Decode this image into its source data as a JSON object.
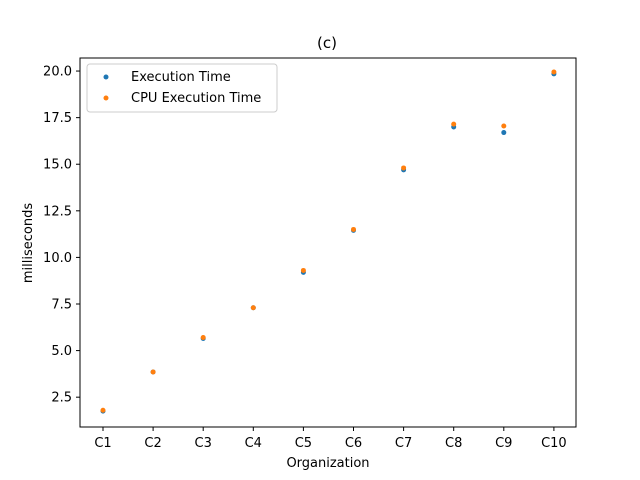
{
  "chart_data": {
    "type": "scatter",
    "title": "(c)",
    "xlabel": "Organization",
    "ylabel": "milliseconds",
    "categories": [
      "C1",
      "C2",
      "C3",
      "C4",
      "C5",
      "C6",
      "C7",
      "C8",
      "C9",
      "C10"
    ],
    "ylim": [
      0.9,
      20.7
    ],
    "yticks": [
      2.5,
      5.0,
      7.5,
      10.0,
      12.5,
      15.0,
      17.5,
      20.0
    ],
    "ytick_labels": [
      "2.5",
      "5.0",
      "7.5",
      "10.0",
      "12.5",
      "15.0",
      "17.5",
      "20.0"
    ],
    "grid": false,
    "legend_position": "upper-left",
    "series": [
      {
        "name": "Execution Time",
        "color": "#1f77b4",
        "values": [
          1.75,
          3.85,
          5.65,
          7.3,
          9.2,
          11.45,
          14.7,
          17.0,
          16.7,
          19.85
        ]
      },
      {
        "name": "CPU Execution Time",
        "color": "#ff7f0e",
        "values": [
          1.8,
          3.85,
          5.7,
          7.3,
          9.3,
          11.5,
          14.8,
          17.15,
          17.05,
          19.95
        ]
      }
    ]
  }
}
